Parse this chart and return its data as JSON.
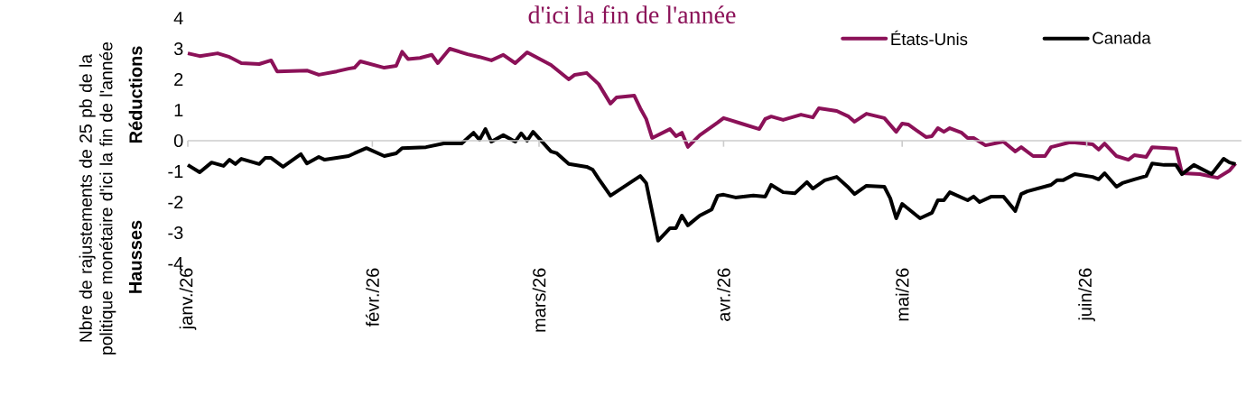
{
  "chart_data": {
    "type": "line",
    "title": "d'ici la fin de l'année",
    "ylabel": "Nbre de rajustements de 25 pb de la politique monétaire d'ici la fin de l'année",
    "annotations": [
      "Réductions",
      "Hausses"
    ],
    "xlim": [
      "2026-01-01",
      "2026-06-27"
    ],
    "ylim": [
      -4,
      4
    ],
    "yticks": [
      -4,
      -3,
      -2,
      -1,
      0,
      1,
      2,
      3,
      4
    ],
    "xticks": [
      {
        "value": "2026-01-01",
        "label": "janv./26"
      },
      {
        "value": "2026-02-01",
        "label": "févr./26"
      },
      {
        "value": "2026-03-01",
        "label": "mars/26"
      },
      {
        "value": "2026-04-01",
        "label": "avr./26"
      },
      {
        "value": "2026-05-01",
        "label": "mai/26"
      },
      {
        "value": "2026-06-01",
        "label": "juin/26"
      }
    ],
    "legend": "top right",
    "line_style": "solid",
    "series": [
      {
        "name": "États-Unis",
        "color": "#8b1158",
        "x": [
          "2026-01-01",
          "2026-01-03",
          "2026-01-06",
          "2026-01-08",
          "2026-01-10",
          "2026-01-13",
          "2026-01-15",
          "2026-01-16",
          "2026-01-21",
          "2026-01-23",
          "2026-01-26",
          "2026-01-28",
          "2026-01-29",
          "2026-01-30",
          "2026-02-03",
          "2026-02-05",
          "2026-02-06",
          "2026-02-07",
          "2026-02-09",
          "2026-02-11",
          "2026-02-12",
          "2026-02-14",
          "2026-02-17",
          "2026-02-19",
          "2026-02-21",
          "2026-02-23",
          "2026-02-25",
          "2026-02-27",
          "2026-03-03",
          "2026-03-06",
          "2026-03-07",
          "2026-03-09",
          "2026-03-11",
          "2026-03-13",
          "2026-03-14",
          "2026-03-17",
          "2026-03-18",
          "2026-03-19",
          "2026-03-20",
          "2026-03-23",
          "2026-03-24",
          "2026-03-25",
          "2026-03-26",
          "2026-03-28",
          "2026-03-31",
          "2026-04-01",
          "2026-04-02",
          "2026-04-04",
          "2026-04-07",
          "2026-04-08",
          "2026-04-09",
          "2026-04-11",
          "2026-04-14",
          "2026-04-16",
          "2026-04-17",
          "2026-04-20",
          "2026-04-22",
          "2026-04-23",
          "2026-04-25",
          "2026-04-28",
          "2026-04-30",
          "2026-05-01",
          "2026-05-02",
          "2026-05-05",
          "2026-05-06",
          "2026-05-07",
          "2026-05-08",
          "2026-05-09",
          "2026-05-11",
          "2026-05-12",
          "2026-05-13",
          "2026-05-15",
          "2026-05-18",
          "2026-05-20",
          "2026-05-21",
          "2026-05-23",
          "2026-05-25",
          "2026-05-26",
          "2026-05-29",
          "2026-05-30",
          "2026-06-02",
          "2026-06-03",
          "2026-06-04",
          "2026-06-06",
          "2026-06-08",
          "2026-06-09",
          "2026-06-11",
          "2026-06-12",
          "2026-06-16",
          "2026-06-17",
          "2026-06-20",
          "2026-06-23",
          "2026-06-25",
          "2026-06-26"
        ],
        "values": [
          2.85,
          2.76,
          2.85,
          2.73,
          2.53,
          2.5,
          2.62,
          2.26,
          2.29,
          2.15,
          2.26,
          2.35,
          2.38,
          2.59,
          2.38,
          2.44,
          2.9,
          2.66,
          2.7,
          2.8,
          2.53,
          3.0,
          2.82,
          2.73,
          2.62,
          2.8,
          2.53,
          2.88,
          2.47,
          2.0,
          2.15,
          2.21,
          1.85,
          1.21,
          1.41,
          1.47,
          1.06,
          0.71,
          0.09,
          0.38,
          0.15,
          0.26,
          -0.2,
          0.18,
          0.59,
          0.74,
          0.68,
          0.56,
          0.38,
          0.71,
          0.79,
          0.68,
          0.85,
          0.76,
          1.06,
          0.97,
          0.79,
          0.62,
          0.88,
          0.74,
          0.29,
          0.56,
          0.53,
          0.12,
          0.15,
          0.41,
          0.29,
          0.41,
          0.26,
          0.09,
          0.09,
          -0.15,
          -0.03,
          -0.35,
          -0.21,
          -0.5,
          -0.5,
          -0.21,
          -0.06,
          -0.06,
          -0.12,
          -0.29,
          -0.09,
          -0.5,
          -0.62,
          -0.47,
          -0.53,
          -0.21,
          -0.26,
          -1.06,
          -1.09,
          -1.21,
          -0.97,
          -0.74
        ]
      },
      {
        "name": "Canada",
        "color": "#000000",
        "x": [
          "2026-01-01",
          "2026-01-03",
          "2026-01-05",
          "2026-01-07",
          "2026-01-08",
          "2026-01-09",
          "2026-01-10",
          "2026-01-13",
          "2026-01-14",
          "2026-01-15",
          "2026-01-17",
          "2026-01-20",
          "2026-01-21",
          "2026-01-23",
          "2026-01-24",
          "2026-01-28",
          "2026-01-29",
          "2026-01-31",
          "2026-02-03",
          "2026-02-05",
          "2026-02-06",
          "2026-02-10",
          "2026-02-13",
          "2026-02-16",
          "2026-02-18",
          "2026-02-19",
          "2026-02-20",
          "2026-02-21",
          "2026-02-23",
          "2026-02-25",
          "2026-02-26",
          "2026-02-27",
          "2026-02-28",
          "2026-03-03",
          "2026-03-04",
          "2026-03-06",
          "2026-03-09",
          "2026-03-10",
          "2026-03-11",
          "2026-03-13",
          "2026-03-18",
          "2026-03-19",
          "2026-03-21",
          "2026-03-23",
          "2026-03-24",
          "2026-03-25",
          "2026-03-26",
          "2026-03-28",
          "2026-03-30",
          "2026-03-31",
          "2026-04-01",
          "2026-04-03",
          "2026-04-06",
          "2026-04-08",
          "2026-04-09",
          "2026-04-11",
          "2026-04-13",
          "2026-04-15",
          "2026-04-16",
          "2026-04-18",
          "2026-04-20",
          "2026-04-22",
          "2026-04-23",
          "2026-04-25",
          "2026-04-28",
          "2026-04-29",
          "2026-04-30",
          "2026-05-01",
          "2026-05-04",
          "2026-05-06",
          "2026-05-07",
          "2026-05-08",
          "2026-05-09",
          "2026-05-12",
          "2026-05-13",
          "2026-05-14",
          "2026-05-16",
          "2026-05-18",
          "2026-05-20",
          "2026-05-21",
          "2026-05-22",
          "2026-05-26",
          "2026-05-27",
          "2026-05-28",
          "2026-05-30",
          "2026-06-02",
          "2026-06-03",
          "2026-06-04",
          "2026-06-06",
          "2026-06-07",
          "2026-06-09",
          "2026-06-11",
          "2026-06-12",
          "2026-06-14",
          "2026-06-16",
          "2026-06-17",
          "2026-06-19",
          "2026-06-22",
          "2026-06-24",
          "2026-06-25",
          "2026-06-26"
        ],
        "values": [
          -0.79,
          -1.03,
          -0.71,
          -0.82,
          -0.62,
          -0.76,
          -0.59,
          -0.76,
          -0.56,
          -0.56,
          -0.85,
          -0.44,
          -0.74,
          -0.53,
          -0.62,
          -0.5,
          -0.41,
          -0.24,
          -0.5,
          -0.41,
          -0.24,
          -0.21,
          -0.09,
          -0.09,
          0.26,
          0.03,
          0.38,
          -0.03,
          0.18,
          -0.03,
          0.24,
          0.0,
          0.29,
          -0.35,
          -0.41,
          -0.76,
          -0.85,
          -0.94,
          -1.24,
          -1.79,
          -1.15,
          -1.38,
          -3.26,
          -2.85,
          -2.85,
          -2.44,
          -2.76,
          -2.44,
          -2.24,
          -1.79,
          -1.76,
          -1.85,
          -1.79,
          -1.82,
          -1.44,
          -1.68,
          -1.71,
          -1.35,
          -1.56,
          -1.29,
          -1.18,
          -1.53,
          -1.74,
          -1.47,
          -1.5,
          -1.88,
          -2.53,
          -2.06,
          -2.53,
          -2.35,
          -1.94,
          -1.94,
          -1.68,
          -1.94,
          -1.82,
          -2.0,
          -1.82,
          -1.82,
          -2.29,
          -1.74,
          -1.65,
          -1.44,
          -1.29,
          -1.29,
          -1.09,
          -1.18,
          -1.26,
          -1.06,
          -1.5,
          -1.38,
          -1.26,
          -1.15,
          -0.74,
          -0.79,
          -0.79,
          -1.09,
          -0.79,
          -1.09,
          -0.59,
          -0.71,
          -0.76
        ]
      }
    ]
  }
}
